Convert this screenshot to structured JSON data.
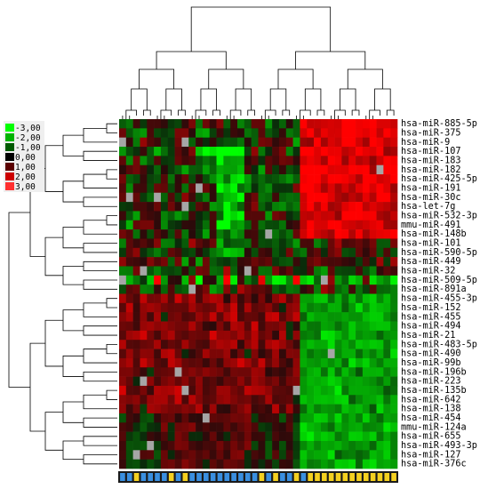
{
  "chart_data": {
    "type": "heatmap",
    "title": "",
    "legend": {
      "placement": "top-left",
      "ticks": [
        "-3,00",
        "-2,00",
        "-1,00",
        "0,00",
        "1,00",
        "2,00",
        "3,00"
      ],
      "colors": [
        "#00ff00",
        "#00b400",
        "#005a00",
        "#000000",
        "#5a0000",
        "#cc0000",
        "#ff3030"
      ],
      "missing_color": "#a6a6a6"
    },
    "row_labels": [
      "hsa-miR-885-5p",
      "hsa-miR-375",
      "hsa-miR-9",
      "hsa-miR-107",
      "hsa-miR-183",
      "hsa-miR-182",
      "hsa-miR-425-5p",
      "hsa-miR-191",
      "hsa-miR-30c",
      "hsa-let-7g",
      "hsa-miR-532-3p",
      "mmu-miR-491",
      "hsa-miR-148b",
      "hsa-miR-101",
      "hsa-miR-590-5p",
      "hsa-miR-449",
      "hsa-miR-32",
      "hsa-miR-509-5p",
      "hsa-miR-891a",
      "hsa-miR-455-3p",
      "hsa-miR-152",
      "hsa-miR-455",
      "hsa-miR-494",
      "hsa-miR-21",
      "hsa-miR-483-5p",
      "hsa-miR-490",
      "hsa-miR-99b",
      "hsa-miR-196b",
      "hsa-miR-223",
      "hsa-miR-135b",
      "hsa-miR-642",
      "hsa-miR-138",
      "hsa-miR-454",
      "mmu-miR-124a",
      "hsa-miR-655",
      "hsa-miR-493-3p",
      "hsa-miR-127",
      "hsa-miR-376c"
    ],
    "n_columns": 40,
    "column_groups": [
      "blue",
      "blue",
      "yellow",
      "blue",
      "blue",
      "blue",
      "blue",
      "yellow",
      "blue",
      "yellow",
      "blue",
      "blue",
      "blue",
      "blue",
      "blue",
      "blue",
      "blue",
      "blue",
      "blue",
      "blue",
      "yellow",
      "blue",
      "yellow",
      "blue",
      "blue",
      "yellow",
      "blue",
      "yellow",
      "yellow",
      "yellow",
      "yellow",
      "yellow",
      "yellow",
      "yellow",
      "yellow",
      "yellow",
      "yellow",
      "yellow",
      "yellow",
      "yellow"
    ],
    "group_colors": {
      "blue": "#3a8fe0",
      "yellow": "#f5d020"
    },
    "row_dendrogram": true,
    "column_dendrogram": true,
    "values_note": ""
  }
}
